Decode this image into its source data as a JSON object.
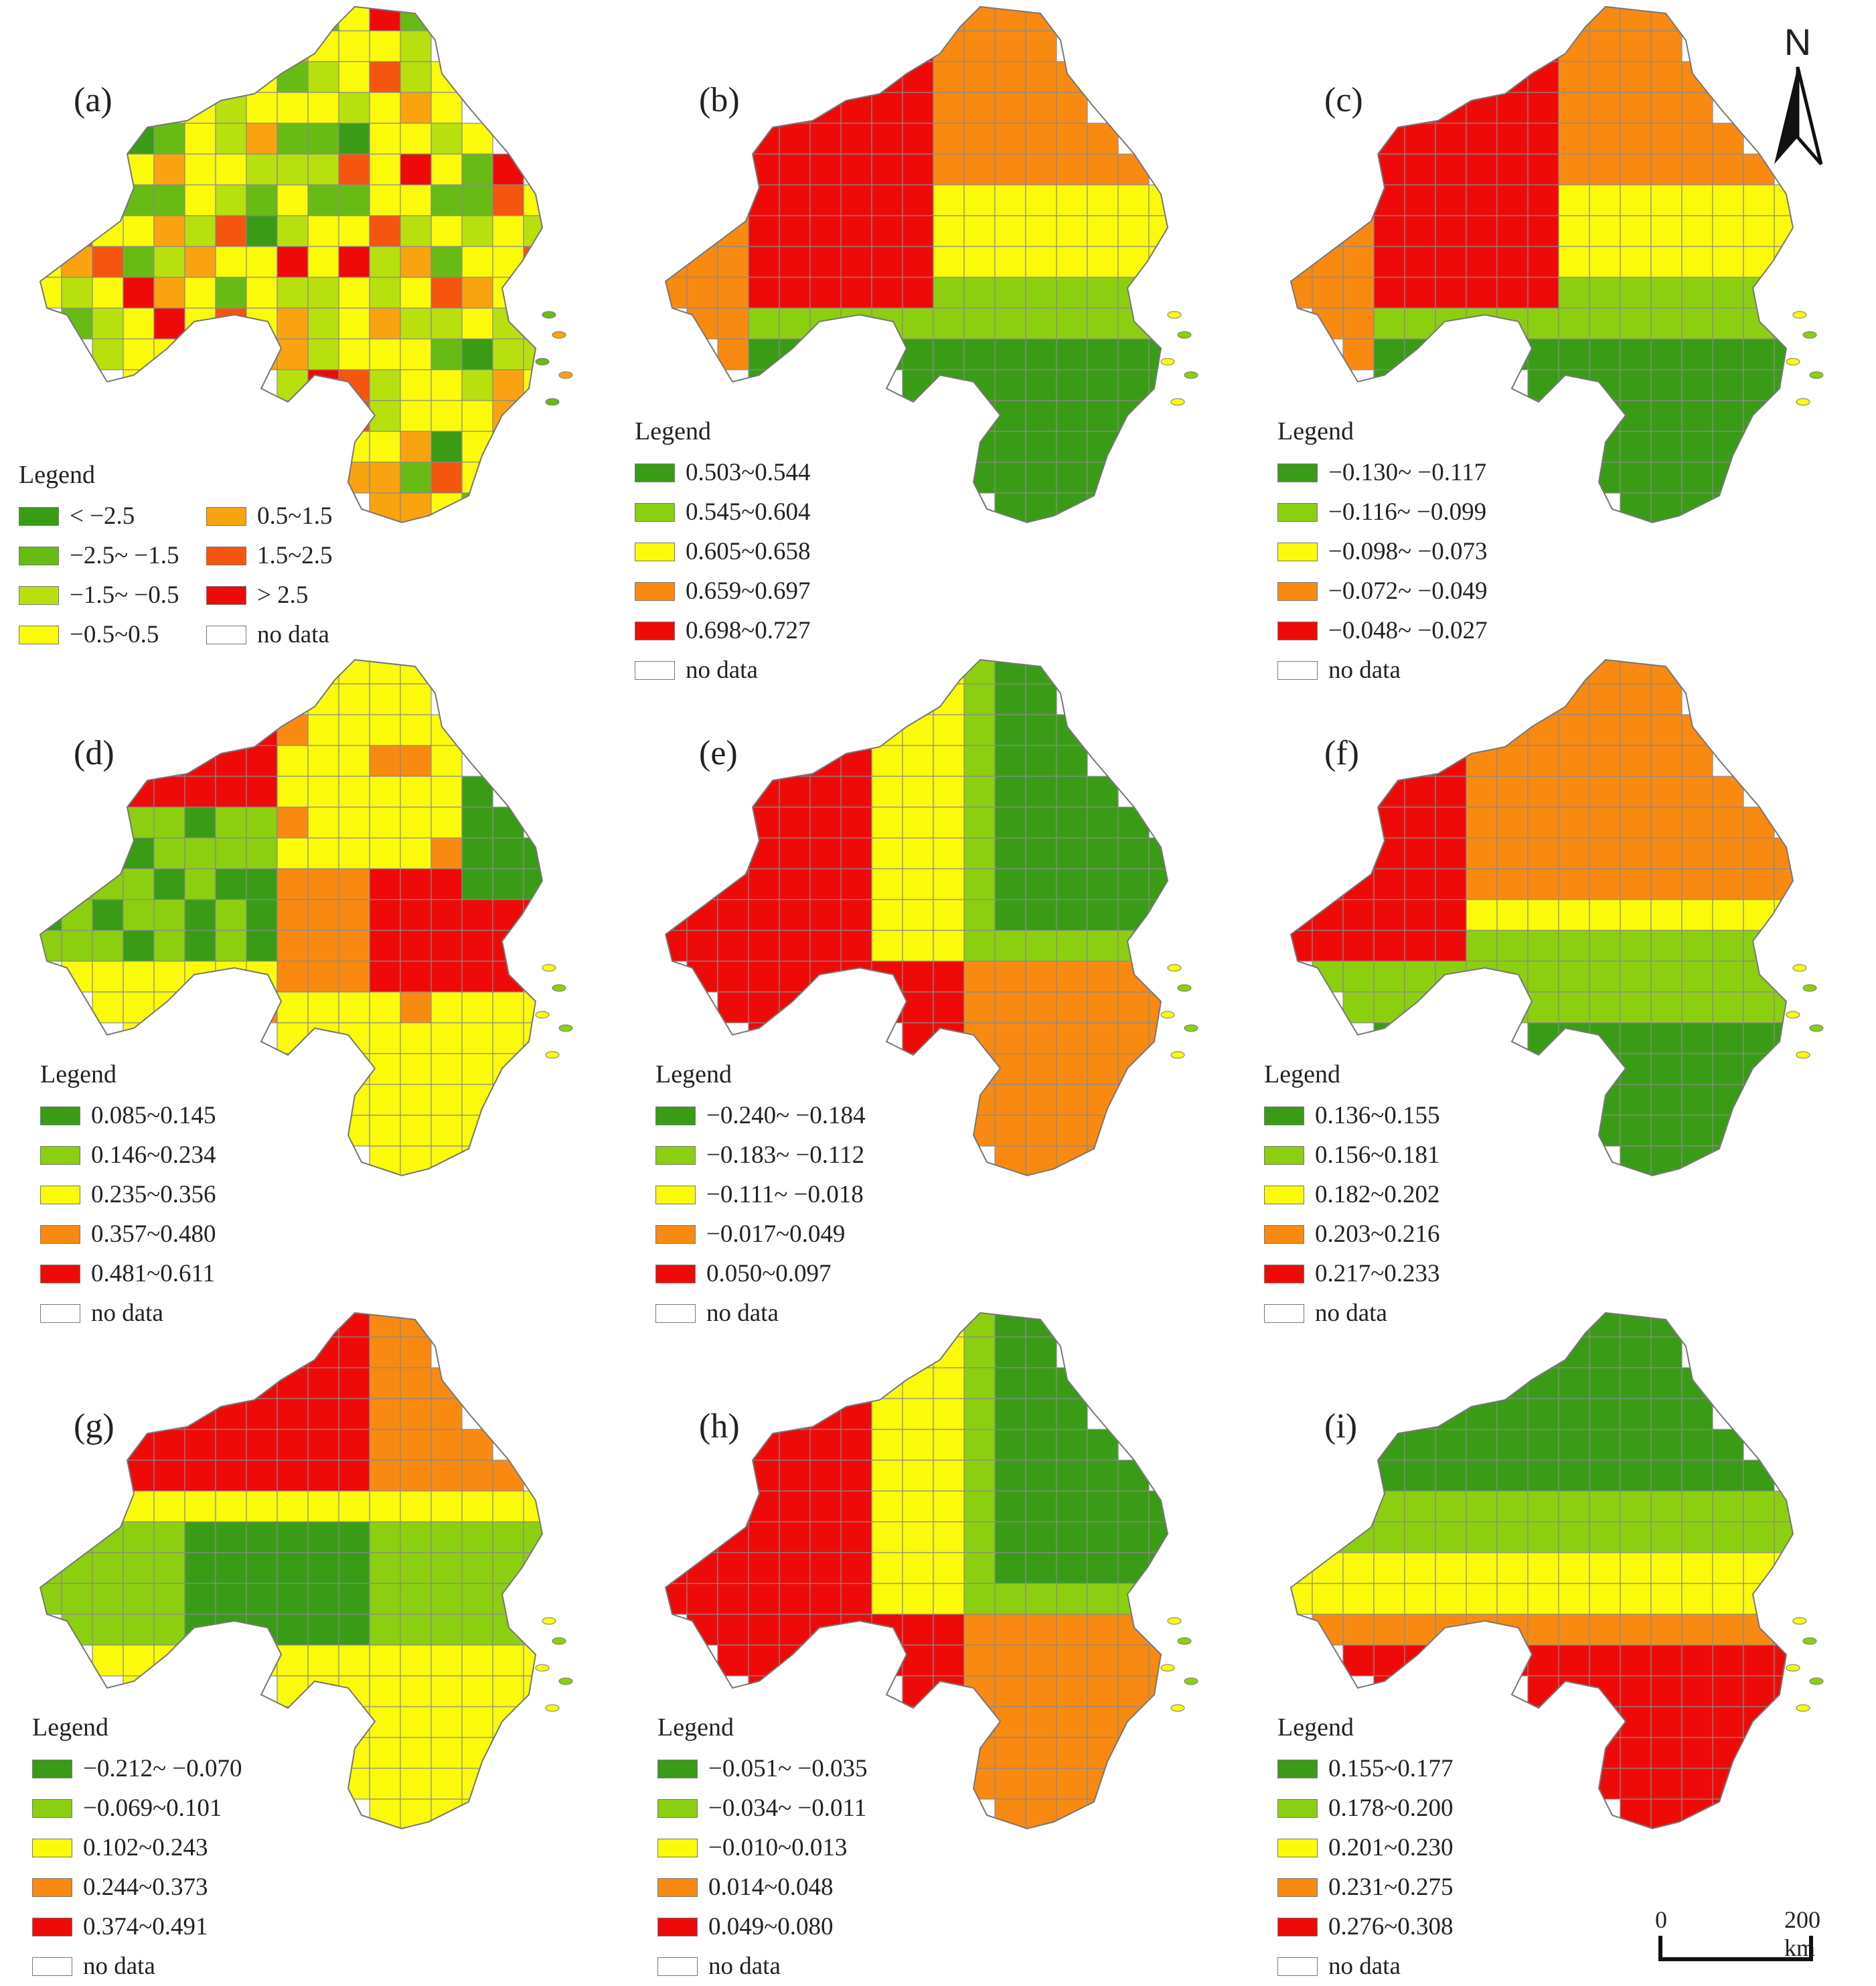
{
  "colors": {
    "dark_green": "#3a9c16",
    "light_green": "#8ccf10",
    "yellow": "#fafa0a",
    "orange": "#f88a12",
    "red": "#ef0a0a",
    "light_orange": "#f9a310",
    "lime": "#b8e00e",
    "mid_green": "#68bb14",
    "red_orange": "#f5550f",
    "no_data": "#ffffff"
  },
  "panels": [
    {
      "label": "(a)",
      "legend_title": "Legend",
      "legend_layout": "two-column",
      "classes": [
        {
          "label": "< −2.5",
          "color": "#3a9c16"
        },
        {
          "label": "0.5~1.5",
          "color": "#f9a310"
        },
        {
          "label": "−2.5~ −1.5",
          "color": "#68bb14"
        },
        {
          "label": "1.5~2.5",
          "color": "#f5550f"
        },
        {
          "label": "−1.5~ −0.5",
          "color": "#b8e00e"
        },
        {
          "label": "> 2.5",
          "color": "#ef0a0a"
        },
        {
          "label": "−0.5~0.5",
          "color": "#fafa0a"
        },
        {
          "label": "no data",
          "color": "#ffffff"
        }
      ],
      "pattern": "mosaic"
    },
    {
      "label": "(b)",
      "legend_title": "Legend",
      "classes": [
        {
          "label": "0.503~0.544",
          "color": "#3a9c16"
        },
        {
          "label": "0.545~0.604",
          "color": "#8ccf10"
        },
        {
          "label": "0.605~0.658",
          "color": "#fafa0a"
        },
        {
          "label": "0.659~0.697",
          "color": "#f88a12"
        },
        {
          "label": "0.698~0.727",
          "color": "#ef0a0a"
        },
        {
          "label": "no data",
          "color": "#ffffff"
        }
      ],
      "pattern": "west-red"
    },
    {
      "label": "(c)",
      "legend_title": "Legend",
      "classes": [
        {
          "label": "−0.130~ −0.117",
          "color": "#3a9c16"
        },
        {
          "label": "−0.116~ −0.099",
          "color": "#8ccf10"
        },
        {
          "label": "−0.098~ −0.073",
          "color": "#fafa0a"
        },
        {
          "label": "−0.072~ −0.049",
          "color": "#f88a12"
        },
        {
          "label": "−0.048~ −0.027",
          "color": "#ef0a0a"
        },
        {
          "label": "no data",
          "color": "#ffffff"
        }
      ],
      "pattern": "west-red"
    },
    {
      "label": "(d)",
      "legend_title": "Legend",
      "classes": [
        {
          "label": "0.085~0.145",
          "color": "#3a9c16"
        },
        {
          "label": "0.146~0.234",
          "color": "#8ccf10"
        },
        {
          "label": "0.235~0.356",
          "color": "#fafa0a"
        },
        {
          "label": "0.357~0.480",
          "color": "#f88a12"
        },
        {
          "label": "0.481~0.611",
          "color": "#ef0a0a"
        },
        {
          "label": "no data",
          "color": "#ffffff"
        }
      ],
      "pattern": "mixed-d"
    },
    {
      "label": "(e)",
      "legend_title": "Legend",
      "classes": [
        {
          "label": "−0.240~ −0.184",
          "color": "#3a9c16"
        },
        {
          "label": "−0.183~ −0.112",
          "color": "#8ccf10"
        },
        {
          "label": "−0.111~ −0.018",
          "color": "#fafa0a"
        },
        {
          "label": "−0.017~0.049",
          "color": "#f88a12"
        },
        {
          "label": "0.050~0.097",
          "color": "#ef0a0a"
        },
        {
          "label": "no data",
          "color": "#ffffff"
        }
      ],
      "pattern": "west-red-east-green"
    },
    {
      "label": "(f)",
      "legend_title": "Legend",
      "classes": [
        {
          "label": "0.136~0.155",
          "color": "#3a9c16"
        },
        {
          "label": "0.156~0.181",
          "color": "#8ccf10"
        },
        {
          "label": "0.182~0.202",
          "color": "#fafa0a"
        },
        {
          "label": "0.203~0.216",
          "color": "#f88a12"
        },
        {
          "label": "0.217~0.233",
          "color": "#ef0a0a"
        },
        {
          "label": "no data",
          "color": "#ffffff"
        }
      ],
      "pattern": "north-orange"
    },
    {
      "label": "(g)",
      "legend_title": "Legend",
      "classes": [
        {
          "label": "−0.212~ −0.070",
          "color": "#3a9c16"
        },
        {
          "label": "−0.069~0.101",
          "color": "#8ccf10"
        },
        {
          "label": "0.102~0.243",
          "color": "#fafa0a"
        },
        {
          "label": "0.244~0.373",
          "color": "#f88a12"
        },
        {
          "label": "0.374~0.491",
          "color": "#ef0a0a"
        },
        {
          "label": "no data",
          "color": "#ffffff"
        }
      ],
      "pattern": "north-red"
    },
    {
      "label": "(h)",
      "legend_title": "Legend",
      "classes": [
        {
          "label": "−0.051~ −0.035",
          "color": "#3a9c16"
        },
        {
          "label": "−0.034~ −0.011",
          "color": "#8ccf10"
        },
        {
          "label": "−0.010~0.013",
          "color": "#fafa0a"
        },
        {
          "label": "0.014~0.048",
          "color": "#f88a12"
        },
        {
          "label": "0.049~0.080",
          "color": "#ef0a0a"
        },
        {
          "label": "no data",
          "color": "#ffffff"
        }
      ],
      "pattern": "west-red-east-green"
    },
    {
      "label": "(i)",
      "legend_title": "Legend",
      "classes": [
        {
          "label": "0.155~0.177",
          "color": "#3a9c16"
        },
        {
          "label": "0.178~0.200",
          "color": "#8ccf10"
        },
        {
          "label": "0.201~0.230",
          "color": "#fafa0a"
        },
        {
          "label": "0.231~0.275",
          "color": "#f88a12"
        },
        {
          "label": "0.276~0.308",
          "color": "#ef0a0a"
        },
        {
          "label": "no data",
          "color": "#ffffff"
        }
      ],
      "pattern": "north-green-south-red"
    }
  ],
  "north_arrow": {
    "letter": "N"
  },
  "scale_bar": {
    "start": "0",
    "end": "200 km"
  }
}
